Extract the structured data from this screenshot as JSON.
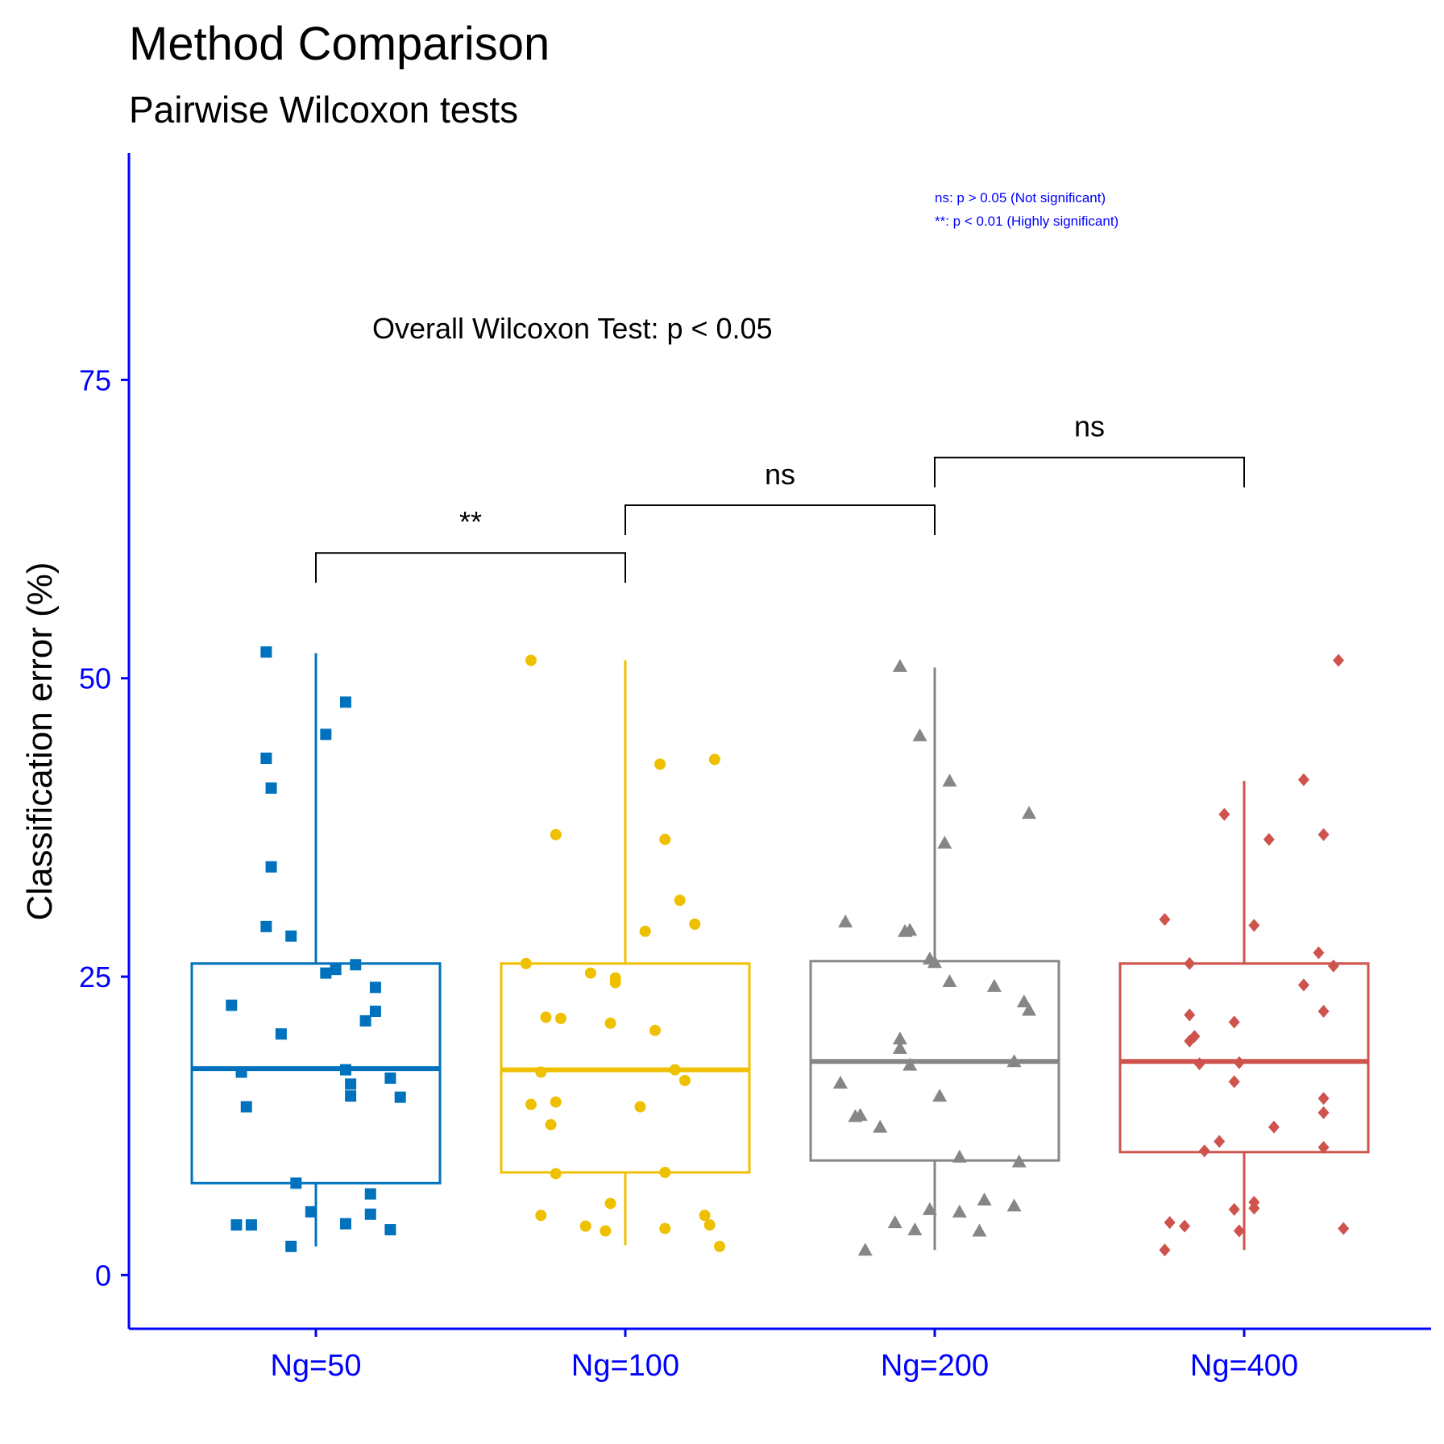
{
  "title": "Method Comparison",
  "subtitle": "Pairwise Wilcoxon tests",
  "overall_test": "Overall Wilcoxon Test: p < 0.05",
  "significance_legend": [
    "ns: p > 0.05 (Not significant)",
    "**: p < 0.01 (Highly significant)"
  ],
  "colors": {
    "axis": "#0000ff",
    "annotation_text": "#000000",
    "bracket": "#000000"
  },
  "chart_data": {
    "type": "box",
    "xlabel": "",
    "ylabel": "Classification error (%)",
    "ylim": [
      -4.5,
      94
    ],
    "yticks": [
      0,
      25,
      50,
      75
    ],
    "categories": [
      "Ng=50",
      "Ng=100",
      "Ng=200",
      "Ng=400"
    ],
    "series": [
      {
        "category": "Ng=50",
        "color": "#0072bd",
        "marker": "square",
        "box": {
          "whisker_low": 2.4,
          "q1": 7.7,
          "median": 17.3,
          "q3": 26.1,
          "whisker_high": 52.1
        },
        "points": [
          {
            "x": -0.1,
            "y": 52.2
          },
          {
            "x": 0.06,
            "y": 48.0
          },
          {
            "x": 0.02,
            "y": 45.3
          },
          {
            "x": -0.1,
            "y": 43.3
          },
          {
            "x": -0.09,
            "y": 40.8
          },
          {
            "x": -0.09,
            "y": 34.2
          },
          {
            "x": -0.1,
            "y": 29.2
          },
          {
            "x": -0.05,
            "y": 28.4
          },
          {
            "x": 0.08,
            "y": 26.0
          },
          {
            "x": 0.04,
            "y": 25.6
          },
          {
            "x": 0.02,
            "y": 25.3
          },
          {
            "x": 0.12,
            "y": 24.1
          },
          {
            "x": -0.17,
            "y": 22.6
          },
          {
            "x": 0.12,
            "y": 22.1
          },
          {
            "x": 0.1,
            "y": 21.3
          },
          {
            "x": -0.07,
            "y": 20.2
          },
          {
            "x": -0.15,
            "y": 17.0
          },
          {
            "x": 0.06,
            "y": 17.2
          },
          {
            "x": 0.15,
            "y": 16.5
          },
          {
            "x": 0.07,
            "y": 16.0
          },
          {
            "x": -0.14,
            "y": 14.1
          },
          {
            "x": 0.07,
            "y": 15.0
          },
          {
            "x": 0.17,
            "y": 14.9
          },
          {
            "x": -0.04,
            "y": 7.7
          },
          {
            "x": 0.11,
            "y": 6.8
          },
          {
            "x": -0.01,
            "y": 5.3
          },
          {
            "x": 0.11,
            "y": 5.1
          },
          {
            "x": -0.16,
            "y": 4.2
          },
          {
            "x": -0.13,
            "y": 4.2
          },
          {
            "x": 0.06,
            "y": 4.3
          },
          {
            "x": 0.15,
            "y": 3.8
          },
          {
            "x": -0.05,
            "y": 2.4
          }
        ]
      },
      {
        "category": "Ng=100",
        "color": "#efc000",
        "marker": "circle",
        "box": {
          "whisker_low": 2.5,
          "q1": 8.6,
          "median": 17.2,
          "q3": 26.1,
          "whisker_high": 51.5
        },
        "points": [
          {
            "x": -0.19,
            "y": 51.5
          },
          {
            "x": 0.18,
            "y": 43.2
          },
          {
            "x": 0.07,
            "y": 42.8
          },
          {
            "x": -0.14,
            "y": 36.9
          },
          {
            "x": 0.08,
            "y": 36.5
          },
          {
            "x": 0.11,
            "y": 31.4
          },
          {
            "x": 0.14,
            "y": 29.4
          },
          {
            "x": 0.04,
            "y": 28.8
          },
          {
            "x": -0.2,
            "y": 26.1
          },
          {
            "x": -0.07,
            "y": 25.3
          },
          {
            "x": -0.02,
            "y": 24.9
          },
          {
            "x": -0.02,
            "y": 24.5
          },
          {
            "x": -0.16,
            "y": 21.6
          },
          {
            "x": -0.13,
            "y": 21.5
          },
          {
            "x": -0.03,
            "y": 21.1
          },
          {
            "x": 0.06,
            "y": 20.5
          },
          {
            "x": -0.17,
            "y": 17.0
          },
          {
            "x": 0.1,
            "y": 17.2
          },
          {
            "x": 0.12,
            "y": 16.3
          },
          {
            "x": -0.14,
            "y": 14.5
          },
          {
            "x": -0.19,
            "y": 14.3
          },
          {
            "x": 0.03,
            "y": 14.1
          },
          {
            "x": -0.15,
            "y": 12.6
          },
          {
            "x": -0.14,
            "y": 8.5
          },
          {
            "x": 0.08,
            "y": 8.6
          },
          {
            "x": -0.03,
            "y": 6.0
          },
          {
            "x": -0.17,
            "y": 5.0
          },
          {
            "x": 0.16,
            "y": 5.0
          },
          {
            "x": -0.08,
            "y": 4.1
          },
          {
            "x": 0.08,
            "y": 3.9
          },
          {
            "x": -0.04,
            "y": 3.7
          },
          {
            "x": 0.17,
            "y": 4.2
          },
          {
            "x": 0.19,
            "y": 2.4
          }
        ]
      },
      {
        "category": "Ng=200",
        "color": "#868686",
        "marker": "triangle",
        "box": {
          "whisker_low": 2.1,
          "q1": 9.6,
          "median": 17.9,
          "q3": 26.3,
          "whisker_high": 50.9
        },
        "points": [
          {
            "x": -0.07,
            "y": 51.0
          },
          {
            "x": -0.03,
            "y": 45.2
          },
          {
            "x": 0.03,
            "y": 41.4
          },
          {
            "x": 0.19,
            "y": 38.7
          },
          {
            "x": 0.02,
            "y": 36.2
          },
          {
            "x": -0.18,
            "y": 29.6
          },
          {
            "x": -0.05,
            "y": 28.9
          },
          {
            "x": -0.06,
            "y": 28.8
          },
          {
            "x": -0.01,
            "y": 26.5
          },
          {
            "x": 0.0,
            "y": 26.2
          },
          {
            "x": 0.03,
            "y": 24.6
          },
          {
            "x": 0.12,
            "y": 24.2
          },
          {
            "x": 0.18,
            "y": 22.9
          },
          {
            "x": 0.19,
            "y": 22.2
          },
          {
            "x": -0.07,
            "y": 19.8
          },
          {
            "x": -0.07,
            "y": 19.0
          },
          {
            "x": -0.05,
            "y": 17.6
          },
          {
            "x": 0.16,
            "y": 17.9
          },
          {
            "x": -0.19,
            "y": 16.1
          },
          {
            "x": 0.01,
            "y": 15.0
          },
          {
            "x": -0.15,
            "y": 13.4
          },
          {
            "x": -0.16,
            "y": 13.3
          },
          {
            "x": -0.11,
            "y": 12.4
          },
          {
            "x": 0.05,
            "y": 9.9
          },
          {
            "x": 0.17,
            "y": 9.5
          },
          {
            "x": 0.1,
            "y": 6.3
          },
          {
            "x": 0.16,
            "y": 5.8
          },
          {
            "x": -0.01,
            "y": 5.5
          },
          {
            "x": 0.05,
            "y": 5.3
          },
          {
            "x": -0.08,
            "y": 4.4
          },
          {
            "x": 0.09,
            "y": 3.7
          },
          {
            "x": -0.04,
            "y": 3.8
          },
          {
            "x": -0.14,
            "y": 2.1
          }
        ]
      },
      {
        "category": "Ng=400",
        "color": "#cd534c",
        "marker": "diamond",
        "box": {
          "whisker_low": 2.1,
          "q1": 10.3,
          "median": 17.9,
          "q3": 26.1,
          "whisker_high": 41.4
        },
        "points": [
          {
            "x": 0.19,
            "y": 51.5
          },
          {
            "x": 0.12,
            "y": 41.5
          },
          {
            "x": -0.04,
            "y": 38.6
          },
          {
            "x": 0.05,
            "y": 36.5
          },
          {
            "x": 0.16,
            "y": 36.9
          },
          {
            "x": -0.16,
            "y": 29.8
          },
          {
            "x": 0.02,
            "y": 29.3
          },
          {
            "x": 0.15,
            "y": 27.0
          },
          {
            "x": -0.11,
            "y": 26.1
          },
          {
            "x": 0.18,
            "y": 25.9
          },
          {
            "x": 0.12,
            "y": 24.3
          },
          {
            "x": 0.16,
            "y": 22.1
          },
          {
            "x": -0.11,
            "y": 21.8
          },
          {
            "x": -0.02,
            "y": 21.2
          },
          {
            "x": -0.1,
            "y": 20.0
          },
          {
            "x": -0.11,
            "y": 19.6
          },
          {
            "x": -0.09,
            "y": 17.7
          },
          {
            "x": -0.01,
            "y": 17.8
          },
          {
            "x": -0.02,
            "y": 16.2
          },
          {
            "x": 0.16,
            "y": 14.8
          },
          {
            "x": 0.16,
            "y": 13.6
          },
          {
            "x": 0.06,
            "y": 12.4
          },
          {
            "x": -0.05,
            "y": 11.2
          },
          {
            "x": -0.08,
            "y": 10.4
          },
          {
            "x": 0.16,
            "y": 10.7
          },
          {
            "x": 0.02,
            "y": 6.1
          },
          {
            "x": -0.02,
            "y": 5.5
          },
          {
            "x": 0.02,
            "y": 5.6
          },
          {
            "x": -0.15,
            "y": 4.4
          },
          {
            "x": -0.12,
            "y": 4.1
          },
          {
            "x": -0.01,
            "y": 3.7
          },
          {
            "x": 0.2,
            "y": 3.9
          },
          {
            "x": -0.16,
            "y": 2.1
          }
        ]
      }
    ],
    "comparisons": [
      {
        "from": "Ng=50",
        "to": "Ng=100",
        "label": "**",
        "y": 60.5,
        "left_tip_y": 58.0,
        "right_tip_y": 58.0
      },
      {
        "from": "Ng=100",
        "to": "Ng=200",
        "label": "ns",
        "y": 64.5,
        "left_tip_y": 62.0,
        "right_tip_y": 62.0
      },
      {
        "from": "Ng=200",
        "to": "Ng=400",
        "label": "ns",
        "y": 68.5,
        "left_tip_y": 66.0,
        "right_tip_y": 66.0
      }
    ]
  }
}
